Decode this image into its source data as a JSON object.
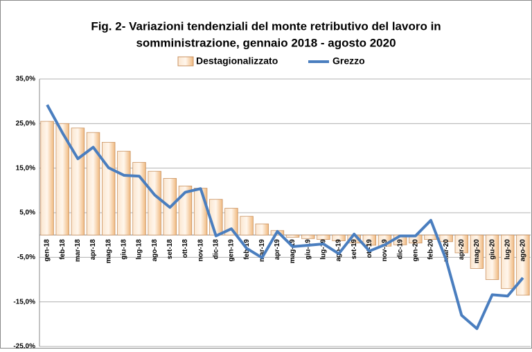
{
  "chart_data": {
    "type": "bar-line",
    "title": [
      "Fig. 2- Variazioni tendenziali del monte retributivo del lavoro in",
      "somministrazione, gennaio 2018 - agosto 2020"
    ],
    "categories": [
      "gen-18",
      "feb-18",
      "mar-18",
      "apr-18",
      "mag-18",
      "giu-18",
      "lug-18",
      "ago-18",
      "set-18",
      "ott-18",
      "nov-18",
      "dic-18",
      "gen-19",
      "feb-19",
      "mar-19",
      "apr-19",
      "mag-19",
      "giu-19",
      "lug-19",
      "ago-19",
      "set-19",
      "ott-19",
      "nov-19",
      "dic-19",
      "gen-20",
      "feb-20",
      "mar-20",
      "apr-20",
      "mag-20",
      "giu-20",
      "lug-20",
      "ago-20"
    ],
    "series": [
      {
        "name": "Destagionalizzato",
        "type": "bar",
        "color": "#f2bd88",
        "values": [
          25.5,
          25.0,
          24.0,
          23.0,
          20.8,
          18.8,
          16.3,
          14.3,
          12.7,
          11.0,
          10.5,
          8.0,
          6.0,
          4.2,
          2.5,
          1.0,
          -0.5,
          -0.8,
          -1.0,
          -1.3,
          -1.8,
          -2.3,
          -2.5,
          -2.2,
          -1.8,
          -1.0,
          -1.5,
          -4.0,
          -7.5,
          -10.0,
          -12.0,
          -13.5
        ]
      },
      {
        "name": "Grezzo",
        "type": "line",
        "color": "#4a7ebf",
        "values": [
          29.2,
          22.9,
          17.1,
          19.7,
          15.1,
          13.4,
          13.2,
          9.0,
          6.2,
          9.6,
          10.4,
          -0.2,
          1.4,
          -3.0,
          -5.1,
          0.8,
          -2.6,
          -2.3,
          -2.0,
          -4.2,
          0.2,
          -3.6,
          -2.2,
          -0.2,
          -0.2,
          3.3,
          -5.6,
          -18.0,
          -21.0,
          -13.4,
          -13.7,
          -9.6
        ]
      }
    ],
    "ylim": [
      -25,
      35
    ],
    "yticks": [
      {
        "value": -25,
        "label": "-25,0%"
      },
      {
        "value": -15,
        "label": "-15,0%"
      },
      {
        "value": -5,
        "label": "-5,0%"
      },
      {
        "value": 5,
        "label": "5,0%"
      },
      {
        "value": 15,
        "label": "15,0%"
      },
      {
        "value": 25,
        "label": "25,0%"
      },
      {
        "value": 35,
        "label": "35,0%"
      }
    ],
    "grid": true
  }
}
